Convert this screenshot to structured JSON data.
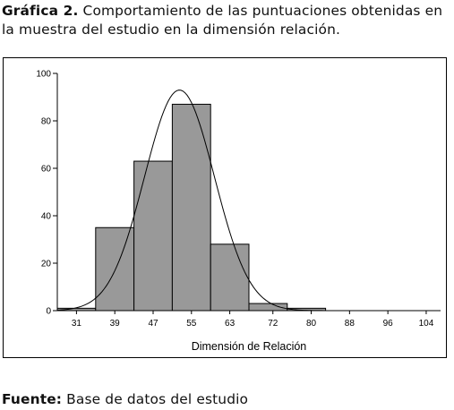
{
  "caption": {
    "label": "Gráfica 2.",
    "text": " Comportamiento de las puntuaciones obtenidas en la muestra del estudio en la dimensión relación."
  },
  "source": {
    "label": "Fuente:",
    "text": " Base de datos del estudio"
  },
  "chart_data": {
    "type": "bar",
    "subtype": "histogram-with-normal-curve",
    "categories": [
      "31",
      "39",
      "47",
      "55",
      "63",
      "72",
      "80",
      "88",
      "96",
      "104"
    ],
    "bins": [
      {
        "start": 27,
        "end": 35,
        "count": 1
      },
      {
        "start": 35,
        "end": 43,
        "count": 35
      },
      {
        "start": 43,
        "end": 51,
        "count": 63
      },
      {
        "start": 51,
        "end": 59,
        "count": 87
      },
      {
        "start": 59,
        "end": 67,
        "count": 28
      },
      {
        "start": 67,
        "end": 75,
        "count": 3
      },
      {
        "start": 75,
        "end": 83,
        "count": 1
      }
    ],
    "normal_curve": {
      "mean": 52.5,
      "sd": 7.3,
      "peak": 93
    },
    "xlabel": "Dimensión de Relación",
    "ylabel": "",
    "xticks": [
      31,
      39,
      47,
      55,
      63,
      72,
      80,
      88,
      96,
      104
    ],
    "yticks": [
      0,
      20,
      40,
      60,
      80,
      100
    ],
    "xlim": [
      27,
      107
    ],
    "ylim": [
      0,
      100
    ],
    "grid": false,
    "bar_color": "#999999",
    "bar_edge_color": "#000000",
    "curve_color": "#000000"
  }
}
